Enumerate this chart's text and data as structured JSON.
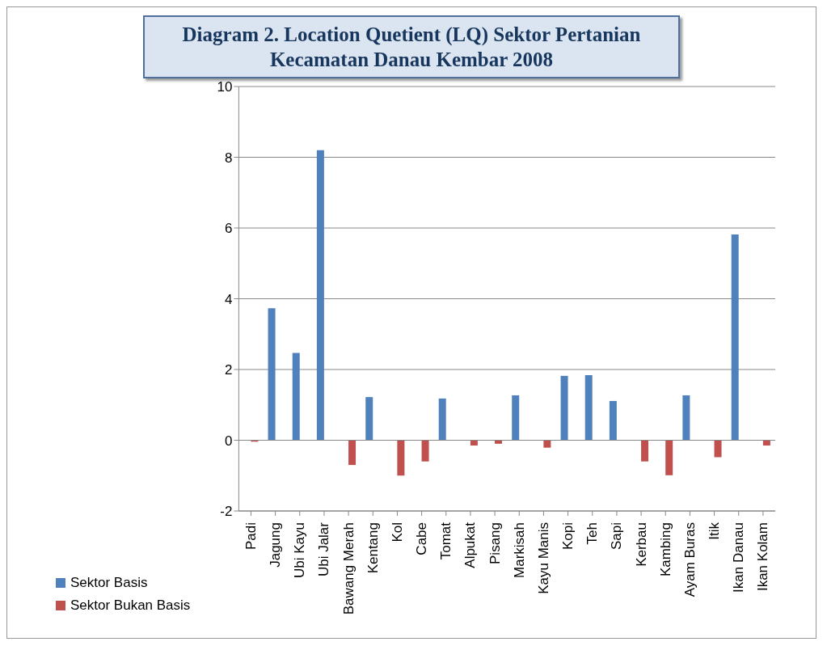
{
  "chart_data": {
    "type": "bar",
    "title": "Diagram 2.  Location Quetient (LQ) Sektor Pertanian Kecamatan Danau Kembar 2008",
    "categories": [
      "Padi",
      "Jagung",
      "Ubi Kayu",
      "Ubi Jalar",
      "Bawang Merah",
      "Kentang",
      "Kol",
      "Cabe",
      "Tomat",
      "Alpukat",
      "Pisang",
      "Markisah",
      "Kayu Manis",
      "Kopi",
      "Teh",
      "Sapi",
      "Kerbau",
      "Kambing",
      "Ayam Buras",
      "Itik",
      "Ikan Danau",
      "Ikan Kolam"
    ],
    "series": [
      {
        "name": "Sektor Basis",
        "color": "#4f81bd",
        "values": [
          null,
          3.73,
          2.47,
          8.2,
          null,
          1.22,
          null,
          null,
          1.18,
          null,
          null,
          1.27,
          null,
          1.82,
          1.84,
          1.11,
          null,
          null,
          1.27,
          null,
          5.82,
          null
        ]
      },
      {
        "name": "Sektor Bukan Basis",
        "color": "#c0504d",
        "values": [
          -0.04,
          null,
          null,
          null,
          -0.7,
          null,
          -1.0,
          -0.6,
          null,
          -0.15,
          -0.1,
          null,
          -0.21,
          null,
          null,
          null,
          -0.6,
          -0.99,
          null,
          -0.48,
          null,
          -0.15
        ]
      }
    ],
    "ylim": [
      -2,
      10
    ],
    "yticks": [
      -2,
      0,
      2,
      4,
      6,
      8,
      10
    ],
    "grid": "y",
    "legend": "bottom left"
  }
}
